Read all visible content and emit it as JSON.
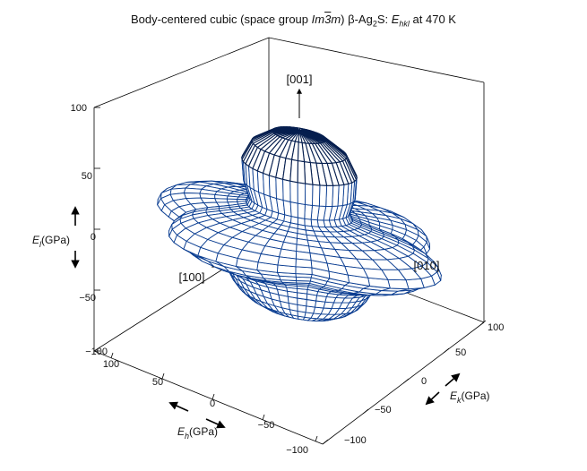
{
  "title": {
    "prefix": "Body-centered cubic (space group ",
    "group_italic_1": "Im",
    "group_bar": "3",
    "group_italic_2": "m",
    "suffix": ") β-Ag",
    "subscript_2": "2",
    "s_label": "S: ",
    "e_label": "E",
    "e_sub": "hkl",
    "temperature": "  at 470 K"
  },
  "axes": {
    "vertical": {
      "ticks": [
        "100",
        "50",
        "0",
        "−50",
        "−100"
      ],
      "label_symbol": "E",
      "label_sub": "l",
      "label_unit": "(GPa)"
    },
    "h_axis": {
      "ticks": [
        "100",
        "50",
        "0",
        "−50",
        "−100"
      ],
      "label_symbol": "E",
      "label_sub": "h",
      "label_unit": "(GPa)"
    },
    "k_axis": {
      "ticks": [
        "100",
        "50",
        "0",
        "−50",
        "−100"
      ],
      "label_symbol": "E",
      "label_sub": "k",
      "label_unit": "(GPa)"
    }
  },
  "directions": {
    "d001": "[001]",
    "d100": "[100]",
    "d010": "[010]"
  },
  "colors": {
    "mesh": "#0a3d91",
    "mesh_dark": "#061f4f",
    "surface": "#ffffff",
    "box": "#000000"
  },
  "chart_data": {
    "type": "surface",
    "quantity": "directional Young's modulus",
    "values_gpa": {
      "E_001": 90,
      "E_111_equatorial": 60,
      "E_110": 55,
      "E_001_negative": -62
    }
  }
}
